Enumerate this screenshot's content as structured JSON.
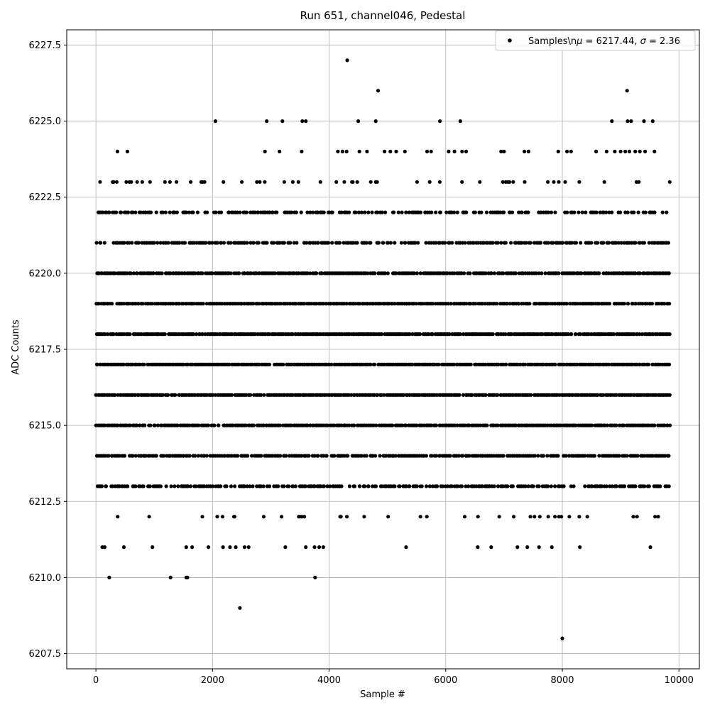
{
  "chart_data": {
    "type": "scatter",
    "title": "Run 651, channel046, Pedestal",
    "xlabel": "Sample #",
    "ylabel": "ADC Counts",
    "xlim": [
      -500,
      10350
    ],
    "ylim": [
      6207.0,
      6228.0
    ],
    "x_ticks": [
      0,
      2000,
      4000,
      6000,
      8000,
      10000
    ],
    "y_ticks": [
      6207.5,
      6210.0,
      6212.5,
      6215.0,
      6217.5,
      6220.0,
      6222.5,
      6225.0,
      6227.5
    ],
    "x_tick_labels": [
      "0",
      "2000",
      "4000",
      "6000",
      "8000",
      "10000"
    ],
    "y_tick_labels": [
      "6207.5",
      "6210.0",
      "6212.5",
      "6215.0",
      "6217.5",
      "6220.0",
      "6222.5",
      "6225.0",
      "6227.5"
    ],
    "grid": true,
    "legend_position": "top-right",
    "color": "#000000",
    "series": [
      {
        "name": "Samples\\nμ = 6217.44, σ = 2.36",
        "name_parts": {
          "prefix": "Samples\\n",
          "mu_sym": "μ",
          "mu_text": " = 6217.44, ",
          "sigma_sym": "σ",
          "sigma_text": " = 2.36"
        },
        "n_points": 9850,
        "x_range": [
          0,
          9849
        ],
        "level_density": {
          "6218": 0.95,
          "6217": 0.95,
          "6216": 0.95,
          "6219": 0.9,
          "6215": 0.9,
          "6220": 0.85,
          "6214": 0.8,
          "6221": 0.7,
          "6213": 0.65,
          "6222": 0.55,
          "6223": 0.12,
          "6212": 0.1
        },
        "outliers": [
          [
            230,
            6210
          ],
          [
            1280,
            6210
          ],
          [
            1550,
            6210
          ],
          [
            1570,
            6210
          ],
          [
            3760,
            6210
          ],
          [
            2470,
            6209
          ],
          [
            8000,
            6208
          ],
          [
            4310,
            6227
          ],
          [
            4840,
            6226
          ],
          [
            9110,
            6226
          ],
          [
            2050,
            6225
          ],
          [
            2930,
            6225
          ],
          [
            3200,
            6225
          ],
          [
            3540,
            6225
          ],
          [
            3600,
            6225
          ],
          [
            4500,
            6225
          ],
          [
            4800,
            6225
          ],
          [
            5900,
            6225
          ],
          [
            6250,
            6225
          ],
          [
            8850,
            6225
          ],
          [
            9120,
            6225
          ],
          [
            9180,
            6225
          ],
          [
            9400,
            6225
          ],
          [
            9550,
            6225
          ],
          [
            370,
            6224
          ],
          [
            540,
            6224
          ],
          [
            2900,
            6224
          ],
          [
            3150,
            6224
          ],
          [
            3530,
            6224
          ],
          [
            4150,
            6224
          ],
          [
            4230,
            6224
          ],
          [
            4300,
            6224
          ],
          [
            4520,
            6224
          ],
          [
            4650,
            6224
          ],
          [
            4950,
            6224
          ],
          [
            5050,
            6224
          ],
          [
            5150,
            6224
          ],
          [
            5300,
            6224
          ],
          [
            5680,
            6224
          ],
          [
            5750,
            6224
          ],
          [
            6050,
            6224
          ],
          [
            6150,
            6224
          ],
          [
            6280,
            6224
          ],
          [
            6350,
            6224
          ],
          [
            6950,
            6224
          ],
          [
            7000,
            6224
          ],
          [
            7350,
            6224
          ],
          [
            7420,
            6224
          ],
          [
            7930,
            6224
          ],
          [
            8080,
            6224
          ],
          [
            8150,
            6224
          ],
          [
            8580,
            6224
          ],
          [
            8760,
            6224
          ],
          [
            8900,
            6224
          ],
          [
            9000,
            6224
          ],
          [
            9080,
            6224
          ],
          [
            9150,
            6224
          ],
          [
            9250,
            6224
          ],
          [
            9330,
            6224
          ],
          [
            9420,
            6224
          ],
          [
            9580,
            6224
          ],
          [
            110,
            6211
          ],
          [
            150,
            6211
          ],
          [
            480,
            6211
          ],
          [
            970,
            6211
          ],
          [
            1550,
            6211
          ],
          [
            1650,
            6211
          ],
          [
            1930,
            6211
          ],
          [
            2180,
            6211
          ],
          [
            2300,
            6211
          ],
          [
            2400,
            6211
          ],
          [
            2550,
            6211
          ],
          [
            2620,
            6211
          ],
          [
            3250,
            6211
          ],
          [
            3600,
            6211
          ],
          [
            3750,
            6211
          ],
          [
            3830,
            6211
          ],
          [
            3900,
            6211
          ],
          [
            5320,
            6211
          ],
          [
            6550,
            6211
          ],
          [
            6780,
            6211
          ],
          [
            7230,
            6211
          ],
          [
            7400,
            6211
          ],
          [
            7600,
            6211
          ],
          [
            7820,
            6211
          ],
          [
            8300,
            6211
          ],
          [
            9510,
            6211
          ]
        ]
      }
    ]
  }
}
